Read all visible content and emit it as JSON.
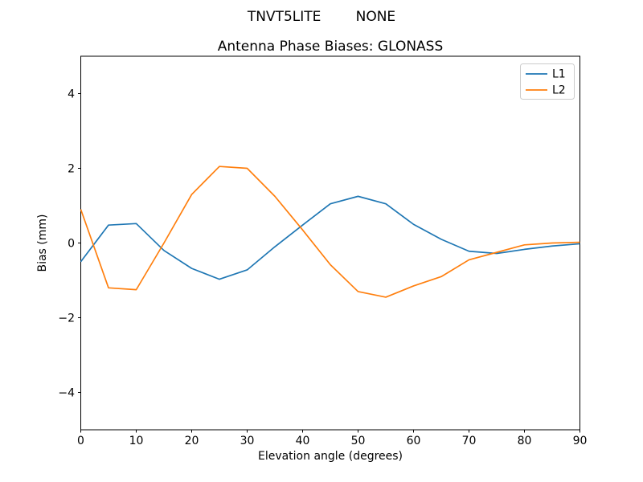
{
  "suptitle": "TNVT5LITE        NONE",
  "title": "Antenna Phase Biases: GLONASS",
  "xlabel": "Elevation angle (degrees)",
  "ylabel": "Bias (mm)",
  "legend": {
    "position": "upper right",
    "items": [
      {
        "label": "L1",
        "color": "#1f77b4"
      },
      {
        "label": "L2",
        "color": "#ff7f0e"
      }
    ]
  },
  "chart_data": {
    "type": "line",
    "title": "Antenna Phase Biases: GLONASS",
    "xlabel": "Elevation angle (degrees)",
    "ylabel": "Bias (mm)",
    "xlim": [
      0,
      90
    ],
    "ylim": [
      -5,
      5
    ],
    "xticks": [
      0,
      10,
      20,
      30,
      40,
      50,
      60,
      70,
      80,
      90
    ],
    "yticks": [
      -4,
      -2,
      0,
      2,
      4
    ],
    "grid": false,
    "legend_position": "upper right",
    "x": [
      0,
      5,
      10,
      15,
      20,
      25,
      30,
      35,
      40,
      45,
      50,
      55,
      60,
      65,
      70,
      75,
      80,
      85,
      90
    ],
    "series": [
      {
        "name": "L1",
        "color": "#1f77b4",
        "values": [
          -0.5,
          0.48,
          0.52,
          -0.2,
          -0.68,
          -0.97,
          -0.72,
          -0.1,
          0.48,
          1.05,
          1.25,
          1.05,
          0.5,
          0.1,
          -0.22,
          -0.28,
          -0.17,
          -0.08,
          -0.02
        ]
      },
      {
        "name": "L2",
        "color": "#ff7f0e",
        "values": [
          0.9,
          -1.2,
          -1.25,
          0.0,
          1.3,
          2.05,
          2.0,
          1.25,
          0.35,
          -0.58,
          -1.3,
          -1.45,
          -1.15,
          -0.9,
          -0.45,
          -0.25,
          -0.05,
          0.0,
          0.02
        ]
      }
    ]
  }
}
